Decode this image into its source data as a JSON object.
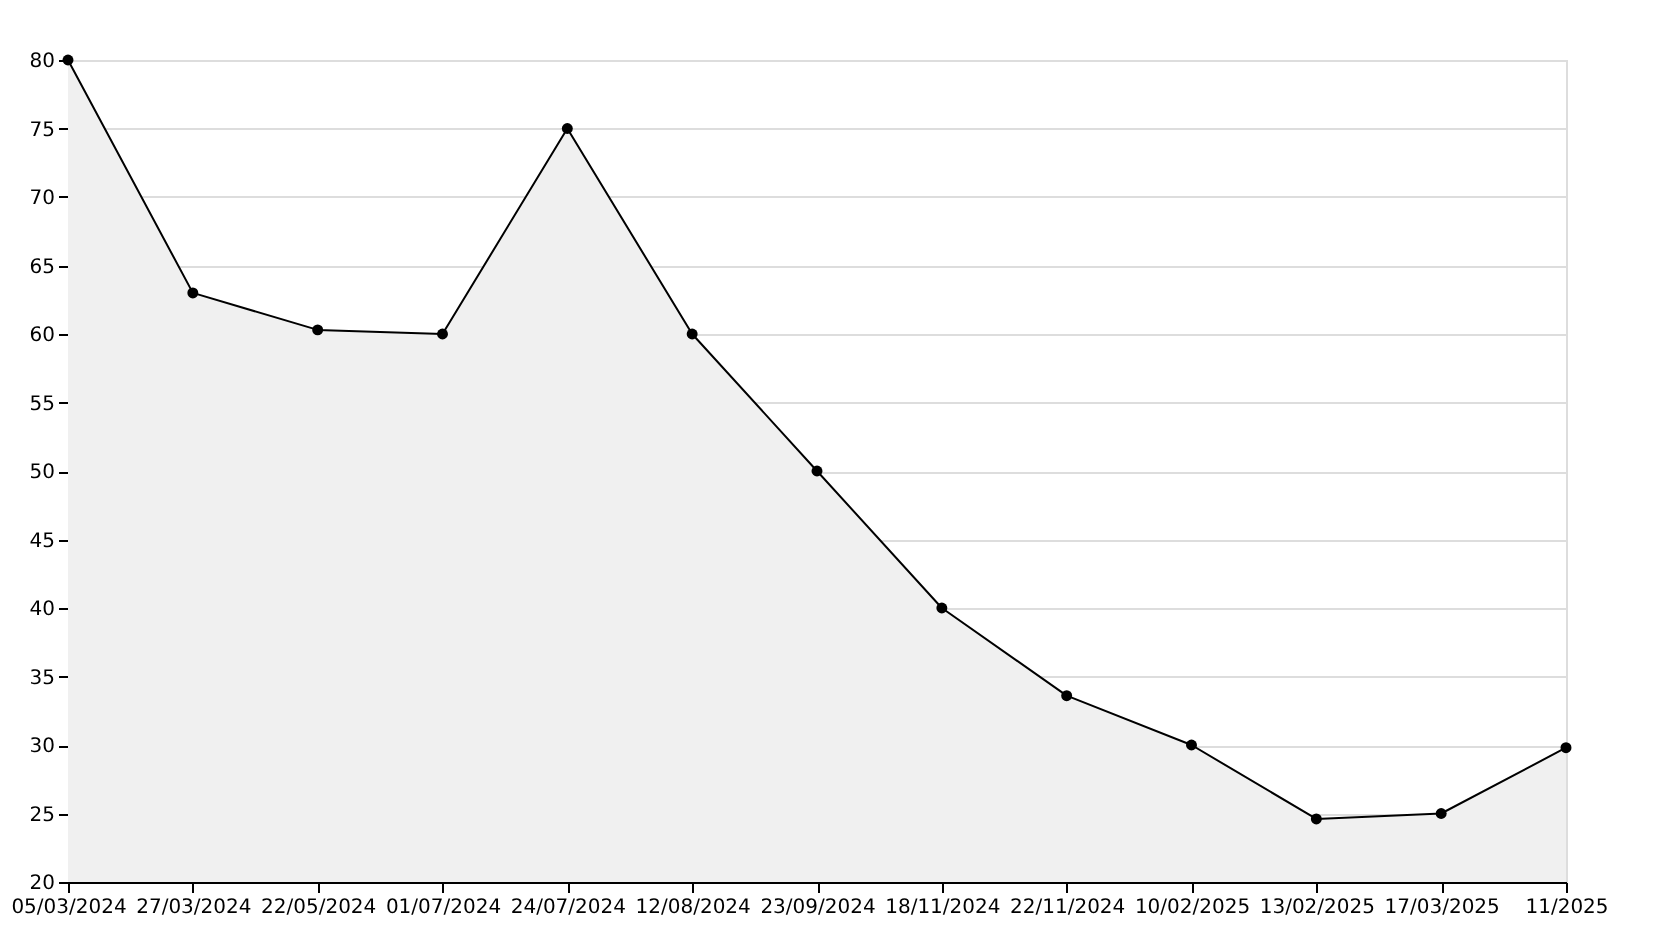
{
  "chart_data": {
    "type": "area",
    "categories": [
      "05/03/2024",
      "27/03/2024",
      "22/05/2024",
      "01/07/2024",
      "24/07/2024",
      "12/08/2024",
      "23/09/2024",
      "18/11/2024",
      "22/11/2024",
      "10/02/2025",
      "13/02/2025",
      "17/03/2025",
      "11/2025"
    ],
    "series": [
      {
        "color": "#000000",
        "values": [
          80,
          63,
          60.3,
          60,
          75,
          60,
          50,
          40,
          33.6,
          30,
          24.6,
          25,
          29.8
        ]
      }
    ],
    "ylim": [
      20,
      80
    ],
    "yticks": [
      20,
      25,
      30,
      35,
      40,
      45,
      50,
      55,
      60,
      65,
      70,
      75,
      80
    ],
    "grid": "y",
    "marker": "circle",
    "line_style": "solid"
  }
}
